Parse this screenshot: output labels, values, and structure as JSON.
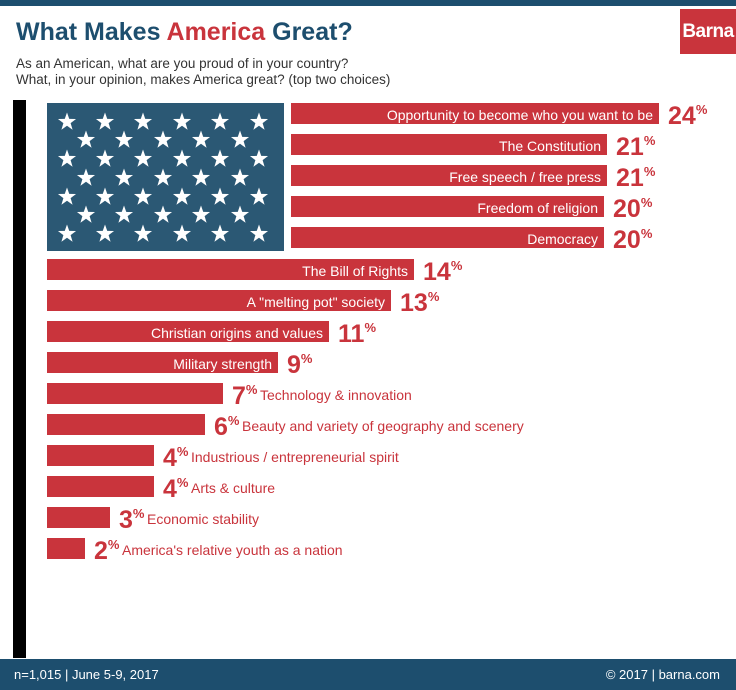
{
  "brand": "Barna",
  "title_part1": "What Makes ",
  "title_accent": "America",
  "title_part2": " Great?",
  "subtitle1": "As an American, what are you proud of in your country?",
  "subtitle2": "What, in your opinion, makes America great? (top two choices)",
  "footer": {
    "left": "n=1,015 | June 5-9, 2017",
    "right": "© 2017 | barna.com"
  },
  "colors": {
    "bar": "#c9343c",
    "flag_canton": "#2b5874",
    "title_blue": "#1d4e6e"
  },
  "chart_data": {
    "type": "bar",
    "orientation": "horizontal",
    "title": "What Makes America Great?",
    "unit": "%",
    "categories": [
      "Opportunity to become who you want to be",
      "The Constitution",
      "Free speech / free press",
      "Freedom of religion",
      "Democracy",
      "The Bill of Rights",
      "A \"melting pot\" society",
      "Christian origins and values",
      "Military strength",
      "Technology & innovation",
      "Beauty and variety of geography and scenery",
      "Industrious / entrepreneurial spirit",
      "Arts & culture",
      "Economic stability",
      "America's relative youth as a nation"
    ],
    "values": [
      24,
      21,
      21,
      20,
      20,
      14,
      13,
      11,
      9,
      7,
      6,
      4,
      4,
      3,
      2
    ]
  }
}
